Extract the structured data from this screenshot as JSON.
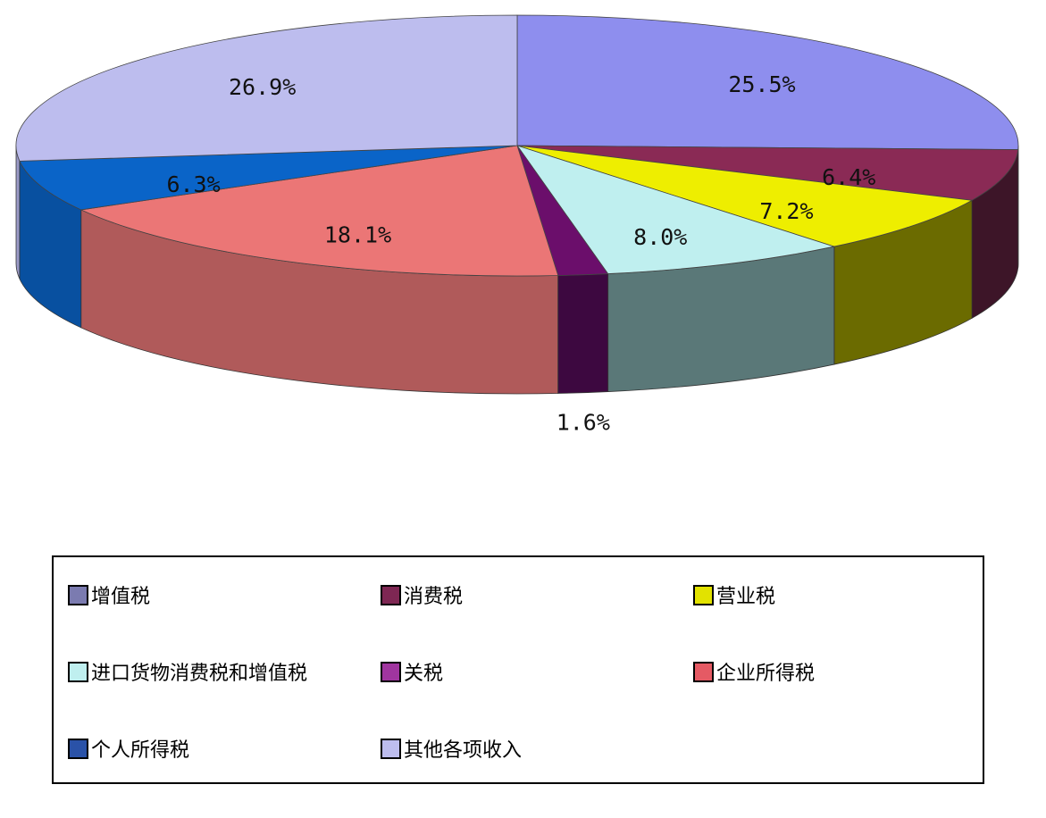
{
  "chart_data": {
    "type": "pie",
    "title": "",
    "slices": [
      {
        "name": "增值税",
        "value": 25.5,
        "label": "25.5%",
        "color": "#8E8EEE",
        "legend_color": "#7B7BB0",
        "side_color": "#5E5EA0"
      },
      {
        "name": "消费税",
        "value": 6.4,
        "label": "6.4%",
        "color": "#8A2A55",
        "legend_color": "#7E2753",
        "side_color": "#3D1528"
      },
      {
        "name": "营业税",
        "value": 7.2,
        "label": "7.2%",
        "color": "#EEEE00",
        "legend_color": "#E2E200",
        "side_color": "#6B6B00"
      },
      {
        "name": "进口货物消费税和增值税",
        "value": 8.0,
        "label": "8.0%",
        "color": "#BFEFEF",
        "legend_color": "#BFEFEF",
        "side_color": "#5A7878"
      },
      {
        "name": "关税",
        "value": 1.6,
        "label": "1.6%",
        "color": "#6B0E6B",
        "legend_color": "#A0359F",
        "side_color": "#3D0840"
      },
      {
        "name": "企业所得税",
        "value": 18.1,
        "label": "18.1%",
        "color": "#EB7676",
        "legend_color": "#E55A64",
        "side_color": "#B05A5A"
      },
      {
        "name": "个人所得税",
        "value": 6.3,
        "label": "6.3%",
        "color": "#0A64C8",
        "legend_color": "#2A52A8",
        "side_color": "#0850A0"
      },
      {
        "name": "其他各项收入",
        "value": 26.9,
        "label": "26.9%",
        "color": "#BDBDEE",
        "legend_color": "#BDBDEE",
        "side_color": "#9A9AC8"
      }
    ],
    "legend_position": "bottom"
  }
}
